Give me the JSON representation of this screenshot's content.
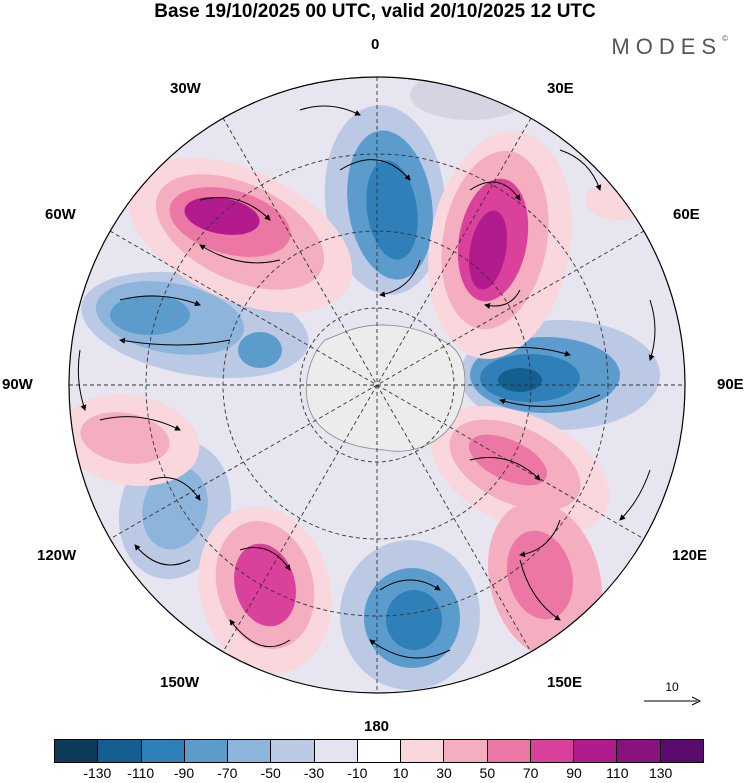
{
  "title": "Base 19/10/2025 00 UTC, valid 20/10/2025 12 UTC",
  "brand": "MODES",
  "brand_mark": "©",
  "longitude_labels": {
    "lon_0": "0",
    "lon_30e": "30E",
    "lon_60e": "60E",
    "lon_90e": "90E",
    "lon_120e": "120E",
    "lon_150e": "150E",
    "lon_180": "180",
    "lon_150w": "150W",
    "lon_120w": "120W",
    "lon_90w": "90W",
    "lon_60w": "60W",
    "lon_30w": "30W"
  },
  "reference_vector": "10",
  "colorbar": {
    "ticks": [
      "-130",
      "-110",
      "-90",
      "-70",
      "-50",
      "-30",
      "-10",
      "10",
      "30",
      "50",
      "70",
      "90",
      "110",
      "130"
    ],
    "colors": [
      "#0e3a5a",
      "#135f91",
      "#2f7fb9",
      "#5b9ccd",
      "#8db5dc",
      "#bcc9e5",
      "#e4e4f1",
      "#ffffff",
      "#f9d7dc",
      "#f4aebf",
      "#ec77a5",
      "#d9419a",
      "#b21b8e",
      "#881280",
      "#5b0a6d"
    ]
  },
  "map_features": {
    "center": "South Pole",
    "continent": "Antarctica"
  }
}
